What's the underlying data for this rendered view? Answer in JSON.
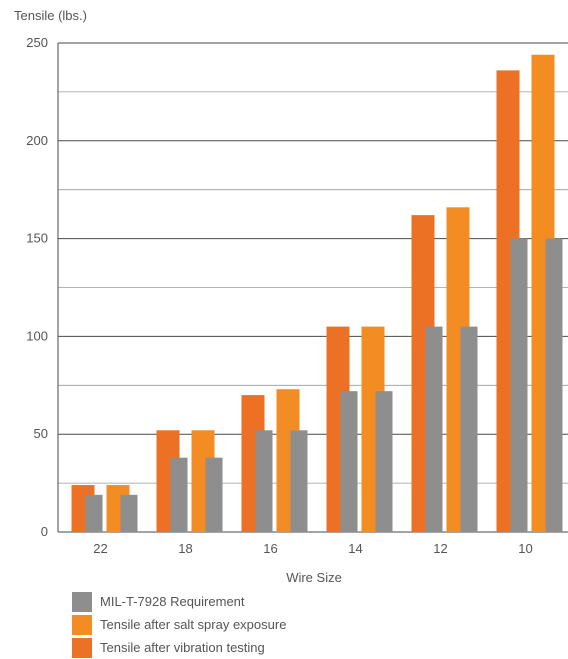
{
  "chart_data": {
    "type": "bar",
    "ylabel": "Tensile (lbs.)",
    "xlabel": "Wire Size",
    "ylim": [
      0,
      250
    ],
    "yticks": [
      0,
      50,
      100,
      150,
      200,
      250
    ],
    "grid": true,
    "legend_position": "bottom-left",
    "categories": [
      "22",
      "18",
      "16",
      "14",
      "12",
      "10"
    ],
    "series": [
      {
        "name": "Tensile after vibration testing",
        "color": "#EC7124",
        "values": [
          24,
          52,
          70,
          105,
          162,
          236
        ]
      },
      {
        "name": "Tensile after salt spray exposure",
        "color": "#F28C23",
        "values": [
          24,
          52,
          73,
          105,
          166,
          244
        ]
      },
      {
        "name": "MIL-T-7928 Requirement",
        "color": "#8E8E8E",
        "values": [
          19,
          38,
          52,
          72,
          105,
          150
        ]
      }
    ],
    "legend": [
      {
        "label": "MIL-T-7928 Requirement",
        "color": "#8E8E8E"
      },
      {
        "label": "Tensile after salt spray exposure",
        "color": "#F28C23"
      },
      {
        "label": "Tensile after vibration testing",
        "color": "#EC7124"
      }
    ]
  }
}
